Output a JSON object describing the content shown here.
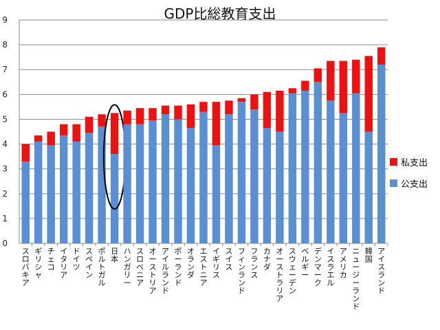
{
  "chart_data": {
    "type": "bar",
    "stacked": true,
    "title": "GDP比総教育支出",
    "ylim": [
      0,
      9
    ],
    "yticks": [
      "0",
      "1",
      "2",
      "3",
      "4",
      "5",
      "6",
      "7",
      "8",
      "9"
    ],
    "grid": true,
    "legend_position": "right",
    "categories": [
      "スロバキア",
      "ギリシャ",
      "チェコ",
      "イタリア",
      "ドイツ",
      "スペイン",
      "ポルトガル",
      "日本",
      "ハンガリー",
      "スロベニア",
      "オーストリア",
      "アイルランド",
      "ポーランド",
      "オランダ",
      "エストニア",
      "イギリス",
      "スイス",
      "フィンランド",
      "フランス",
      "カナダ",
      "オーストラリア",
      "スウェーデン",
      "ベルギー",
      "デンマーク",
      "イスラエル",
      "アメリカ",
      "ニュージーランド",
      "韓国",
      "アイスランド"
    ],
    "series": [
      {
        "name": "公支出",
        "color": "#5b8fd4",
        "values": [
          3.3,
          4.1,
          3.95,
          4.35,
          4.1,
          4.45,
          4.7,
          3.6,
          4.8,
          4.8,
          4.95,
          5.2,
          5.0,
          4.65,
          5.3,
          3.95,
          5.2,
          5.7,
          5.4,
          4.65,
          4.5,
          6.05,
          6.15,
          6.5,
          5.75,
          5.25,
          6.05,
          4.5,
          7.2
        ]
      },
      {
        "name": "私支出",
        "color": "#ee1111",
        "values": [
          0.7,
          0.25,
          0.55,
          0.45,
          0.7,
          0.65,
          0.5,
          1.65,
          0.55,
          0.65,
          0.5,
          0.35,
          0.55,
          0.95,
          0.4,
          1.75,
          0.55,
          0.15,
          0.6,
          1.45,
          1.65,
          0.2,
          0.4,
          0.55,
          1.6,
          2.1,
          1.35,
          3.05,
          0.7
        ]
      }
    ],
    "annotation": {
      "type": "ellipse",
      "category": "日本"
    }
  }
}
